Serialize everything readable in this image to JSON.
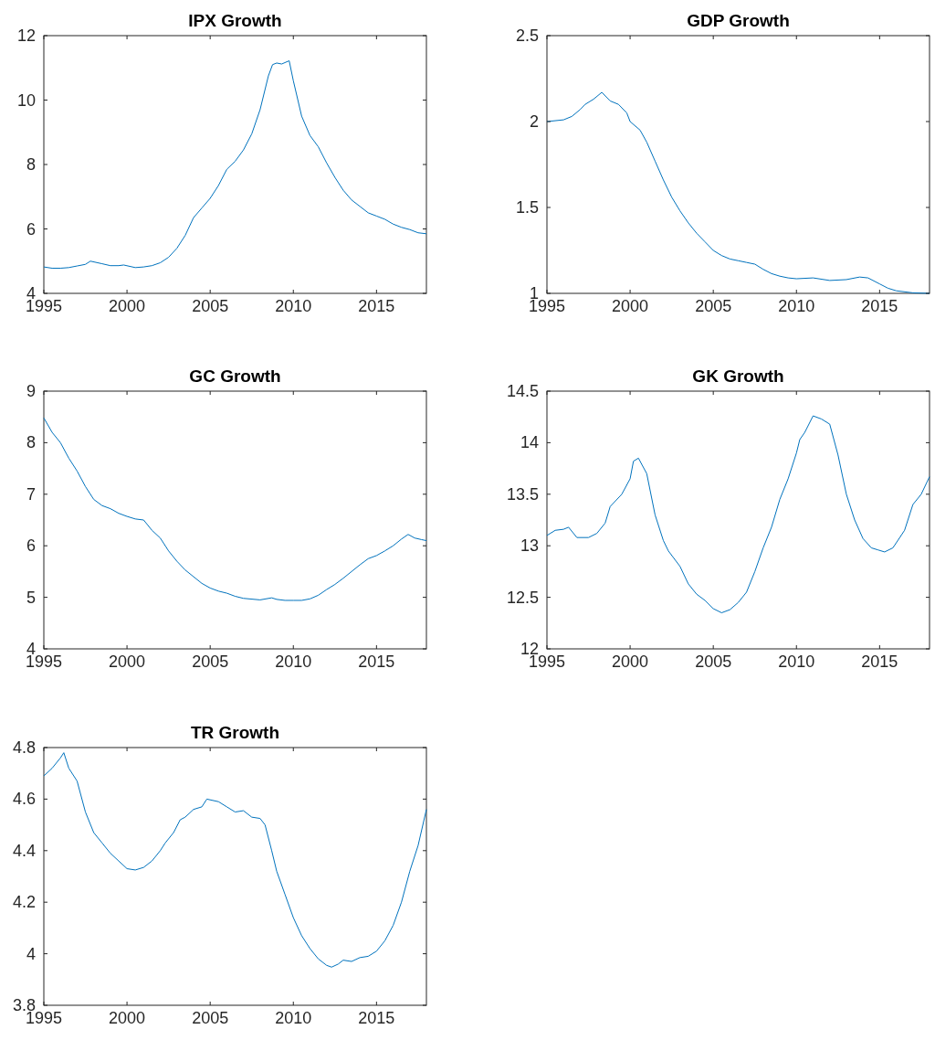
{
  "chart_data": [
    {
      "type": "line",
      "title": "IPX Growth",
      "xlim": [
        1995,
        2018
      ],
      "xticks": [
        1995,
        2000,
        2005,
        2010,
        2015
      ],
      "ylim": [
        4,
        12
      ],
      "yticks": [
        4,
        6,
        8,
        10,
        12
      ],
      "grid": false,
      "series": [
        {
          "color": "#0072bd",
          "x": [
            1995,
            1995.5,
            1996,
            1996.5,
            1997,
            1997.5,
            1997.8,
            1998.5,
            1999,
            1999.5,
            1999.8,
            2000.5,
            2001,
            2001.5,
            2002,
            2002.5,
            2003,
            2003.5,
            2004,
            2004.5,
            2005,
            2005.5,
            2006,
            2006.5,
            2007,
            2007.5,
            2008,
            2008.5,
            2008.75,
            2009,
            2009.3,
            2009.75,
            2010,
            2010.5,
            2011,
            2011.5,
            2012,
            2012.5,
            2013,
            2013.5,
            2014,
            2014.5,
            2015,
            2015.5,
            2016,
            2016.5,
            2017,
            2017.5,
            2018
          ],
          "values": [
            4.82,
            4.78,
            4.78,
            4.8,
            4.85,
            4.9,
            5.0,
            4.92,
            4.86,
            4.86,
            4.88,
            4.8,
            4.82,
            4.86,
            4.95,
            5.12,
            5.4,
            5.8,
            6.35,
            6.65,
            6.95,
            7.35,
            7.85,
            8.1,
            8.45,
            8.95,
            9.7,
            10.75,
            11.1,
            11.15,
            11.12,
            11.22,
            10.6,
            9.5,
            8.9,
            8.55,
            8.05,
            7.6,
            7.2,
            6.9,
            6.7,
            6.5,
            6.4,
            6.3,
            6.15,
            6.05,
            5.98,
            5.88,
            5.85
          ]
        }
      ]
    },
    {
      "type": "line",
      "title": "GDP Growth",
      "xlim": [
        1995,
        2018
      ],
      "xticks": [
        1995,
        2000,
        2005,
        2010,
        2015
      ],
      "ylim": [
        1,
        2.5
      ],
      "yticks": [
        1,
        1.5,
        2,
        2.5
      ],
      "grid": false,
      "series": [
        {
          "color": "#0072bd",
          "x": [
            1995,
            1996,
            1996.5,
            1997,
            1997.3,
            1997.8,
            1998.3,
            1998.8,
            1999.3,
            1999.8,
            2000,
            2000.6,
            2001,
            2001.5,
            2002,
            2002.5,
            2003,
            2003.5,
            2004,
            2004.5,
            2005,
            2005.5,
            2006,
            2006.5,
            2007,
            2007.5,
            2008,
            2008.5,
            2009,
            2009.5,
            2010,
            2011,
            2012,
            2013,
            2013.8,
            2014.3,
            2015,
            2015.5,
            2016,
            2017,
            2018
          ],
          "values": [
            2.0,
            2.01,
            2.03,
            2.07,
            2.1,
            2.13,
            2.17,
            2.12,
            2.1,
            2.05,
            2.0,
            1.95,
            1.88,
            1.77,
            1.66,
            1.56,
            1.48,
            1.41,
            1.35,
            1.3,
            1.25,
            1.22,
            1.2,
            1.19,
            1.18,
            1.17,
            1.14,
            1.115,
            1.1,
            1.09,
            1.085,
            1.09,
            1.075,
            1.08,
            1.095,
            1.09,
            1.055,
            1.03,
            1.015,
            1.003,
            1.0
          ]
        }
      ]
    },
    {
      "type": "line",
      "title": "GC Growth",
      "xlim": [
        1995,
        2018
      ],
      "xticks": [
        1995,
        2000,
        2005,
        2010,
        2015
      ],
      "ylim": [
        4,
        9
      ],
      "yticks": [
        4,
        5,
        6,
        7,
        8,
        9
      ],
      "grid": false,
      "series": [
        {
          "color": "#0072bd",
          "x": [
            1995,
            1995.5,
            1996,
            1996.5,
            1997,
            1997.5,
            1998,
            1998.5,
            1999,
            1999.5,
            2000,
            2000.5,
            2001,
            2001.5,
            2002,
            2002.5,
            2003,
            2003.5,
            2004,
            2004.5,
            2005,
            2005.5,
            2006,
            2006.5,
            2007,
            2008,
            2008.7,
            2009,
            2009.5,
            2010,
            2010.5,
            2011,
            2011.5,
            2012,
            2012.5,
            2013,
            2013.5,
            2014,
            2014.5,
            2015,
            2015.5,
            2016,
            2016.5,
            2016.9,
            2017.3,
            2017.7,
            2018
          ],
          "values": [
            8.48,
            8.2,
            8.0,
            7.7,
            7.45,
            7.15,
            6.9,
            6.78,
            6.72,
            6.63,
            6.57,
            6.52,
            6.5,
            6.3,
            6.15,
            5.9,
            5.7,
            5.53,
            5.4,
            5.27,
            5.18,
            5.12,
            5.08,
            5.02,
            4.98,
            4.95,
            4.99,
            4.96,
            4.94,
            4.94,
            4.94,
            4.97,
            5.04,
            5.15,
            5.25,
            5.37,
            5.5,
            5.63,
            5.75,
            5.81,
            5.9,
            6.0,
            6.13,
            6.22,
            6.15,
            6.12,
            6.1
          ]
        }
      ]
    },
    {
      "type": "line",
      "title": "GK Growth",
      "xlim": [
        1995,
        2018
      ],
      "xticks": [
        1995,
        2000,
        2005,
        2010,
        2015
      ],
      "ylim": [
        12,
        14.5
      ],
      "yticks": [
        12,
        12.5,
        13,
        13.5,
        14,
        14.5
      ],
      "grid": false,
      "series": [
        {
          "color": "#0072bd",
          "x": [
            1995,
            1995.5,
            1996,
            1996.3,
            1996.8,
            1997.5,
            1998,
            1998.5,
            1998.8,
            1999.5,
            2000,
            2000.2,
            2000.5,
            2001,
            2001.5,
            2002,
            2002.3,
            2003,
            2003.5,
            2004,
            2004.5,
            2005,
            2005.5,
            2006,
            2006.5,
            2007,
            2007.5,
            2008,
            2008.5,
            2009,
            2009.5,
            2010,
            2010.2,
            2010.5,
            2011,
            2011.5,
            2012,
            2012.5,
            2013,
            2013.5,
            2014,
            2014.5,
            2014.9,
            2015.3,
            2015.8,
            2016.5,
            2017,
            2017.5,
            2018
          ],
          "values": [
            13.1,
            13.15,
            13.16,
            13.18,
            13.08,
            13.08,
            13.12,
            13.22,
            13.38,
            13.5,
            13.65,
            13.82,
            13.85,
            13.7,
            13.3,
            13.05,
            12.95,
            12.8,
            12.63,
            12.53,
            12.47,
            12.39,
            12.35,
            12.38,
            12.45,
            12.55,
            12.75,
            12.98,
            13.18,
            13.45,
            13.65,
            13.9,
            14.03,
            14.1,
            14.26,
            14.23,
            14.18,
            13.88,
            13.5,
            13.25,
            13.07,
            12.98,
            12.96,
            12.94,
            12.98,
            13.15,
            13.4,
            13.5,
            13.67
          ]
        }
      ]
    },
    {
      "type": "line",
      "title": "TR Growth",
      "xlim": [
        1995,
        2018
      ],
      "xticks": [
        1995,
        2000,
        2005,
        2010,
        2015
      ],
      "ylim": [
        3.8,
        4.8
      ],
      "yticks": [
        3.8,
        4,
        4.2,
        4.4,
        4.6,
        4.8
      ],
      "grid": false,
      "series": [
        {
          "color": "#0072bd",
          "x": [
            1995,
            1995.5,
            1996,
            1996.2,
            1996.5,
            1997,
            1997.5,
            1998,
            1998.5,
            1999,
            1999.5,
            2000,
            2000.5,
            2001,
            2001.5,
            2002,
            2002.3,
            2002.8,
            2003.2,
            2003.5,
            2004,
            2004.5,
            2004.8,
            2005.5,
            2006,
            2006.5,
            2007,
            2007.5,
            2008,
            2008.3,
            2008.7,
            2009,
            2009.5,
            2010,
            2010.5,
            2011,
            2011.5,
            2012,
            2012.3,
            2012.7,
            2013,
            2013.5,
            2014,
            2014.5,
            2015,
            2015.5,
            2016,
            2016.5,
            2017,
            2017.5,
            2018
          ],
          "values": [
            4.69,
            4.72,
            4.76,
            4.78,
            4.72,
            4.67,
            4.55,
            4.47,
            4.43,
            4.39,
            4.36,
            4.33,
            4.325,
            4.335,
            4.36,
            4.4,
            4.43,
            4.47,
            4.52,
            4.53,
            4.56,
            4.57,
            4.6,
            4.59,
            4.57,
            4.55,
            4.555,
            4.53,
            4.525,
            4.5,
            4.4,
            4.32,
            4.23,
            4.14,
            4.07,
            4.02,
            3.98,
            3.955,
            3.948,
            3.96,
            3.975,
            3.97,
            3.985,
            3.99,
            4.01,
            4.05,
            4.11,
            4.2,
            4.32,
            4.42,
            4.56
          ]
        }
      ]
    }
  ]
}
